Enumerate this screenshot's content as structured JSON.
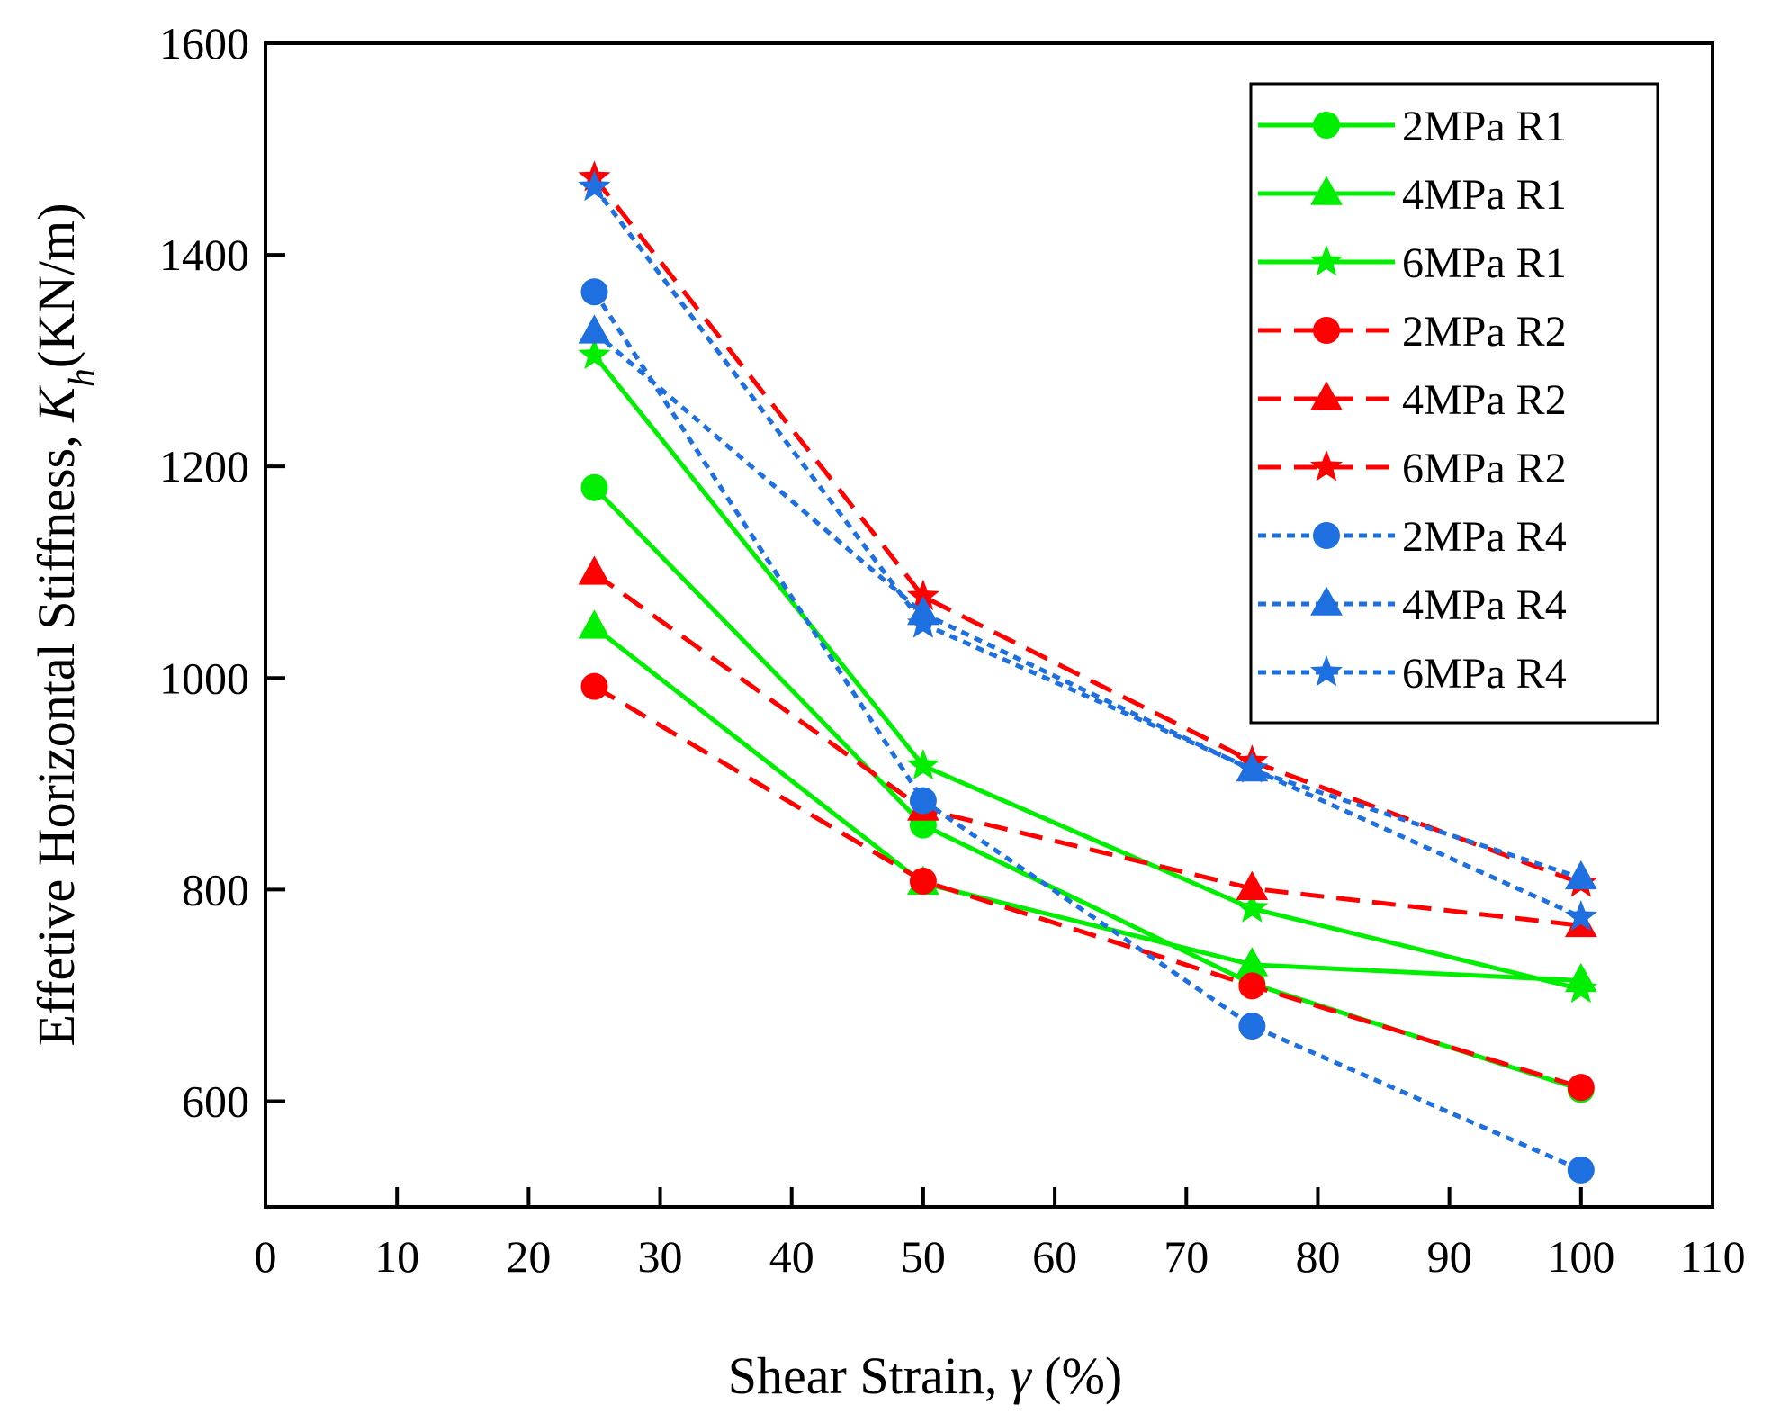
{
  "chart_data": {
    "type": "line",
    "title": "",
    "xlabel": "Shear Strain, γ (%)",
    "xlabel_parts": {
      "text": "Shear Strain, ",
      "symbol": "γ",
      "unit": " (%)"
    },
    "ylabel": "Effetive Horizontal Stiffness, Kh(KN/m)",
    "ylabel_parts": {
      "text": "Effetive Horizontal Stiffness, ",
      "symbol": "K",
      "subscript": "h",
      "unit": "(KN/m)"
    },
    "xlim": [
      0,
      110
    ],
    "ylim": [
      500,
      1600
    ],
    "xticks": [
      0,
      10,
      20,
      30,
      40,
      50,
      60,
      70,
      80,
      90,
      100,
      110
    ],
    "yticks": [
      600,
      800,
      1000,
      1200,
      1400,
      1600
    ],
    "legend_position": "top-right",
    "grid": false,
    "series": [
      {
        "name": "2MPa R1",
        "color": "#00ee00",
        "dash": "solid",
        "marker": "circle",
        "x": [
          25,
          50,
          75,
          100
        ],
        "y": [
          1180,
          861,
          711,
          611
        ]
      },
      {
        "name": "4MPa R1",
        "color": "#00ee00",
        "dash": "solid",
        "marker": "triangle",
        "x": [
          25,
          50,
          75,
          100
        ],
        "y": [
          1048,
          806,
          729,
          714
        ]
      },
      {
        "name": "6MPa R1",
        "color": "#00ee00",
        "dash": "solid",
        "marker": "star",
        "x": [
          25,
          50,
          75,
          100
        ],
        "y": [
          1305,
          917,
          782,
          706
        ]
      },
      {
        "name": "2MPa R2",
        "color": "#ff0000",
        "dash": "dashed",
        "marker": "circle",
        "x": [
          25,
          50,
          75,
          100
        ],
        "y": [
          992,
          808,
          709,
          613
        ]
      },
      {
        "name": "4MPa R2",
        "color": "#ff0000",
        "dash": "dashed",
        "marker": "triangle",
        "x": [
          25,
          50,
          75,
          100
        ],
        "y": [
          1099,
          876,
          801,
          766
        ]
      },
      {
        "name": "6MPa R2",
        "color": "#ff0000",
        "dash": "dashed",
        "marker": "star",
        "x": [
          25,
          50,
          75,
          100
        ],
        "y": [
          1473,
          1077,
          921,
          806
        ]
      },
      {
        "name": "2MPa R4",
        "color": "#1e6fe0",
        "dash": "dotted",
        "marker": "circle",
        "x": [
          25,
          50,
          75,
          100
        ],
        "y": [
          1365,
          884,
          671,
          535
        ]
      },
      {
        "name": "4MPa R4",
        "color": "#1e6fe0",
        "dash": "dotted",
        "marker": "triangle",
        "x": [
          25,
          50,
          75,
          100
        ],
        "y": [
          1327,
          1061,
          913,
          811
        ]
      },
      {
        "name": "6MPa R4",
        "color": "#1e6fe0",
        "dash": "dotted",
        "marker": "star",
        "x": [
          25,
          50,
          75,
          100
        ],
        "y": [
          1464,
          1051,
          914,
          774
        ]
      }
    ]
  }
}
